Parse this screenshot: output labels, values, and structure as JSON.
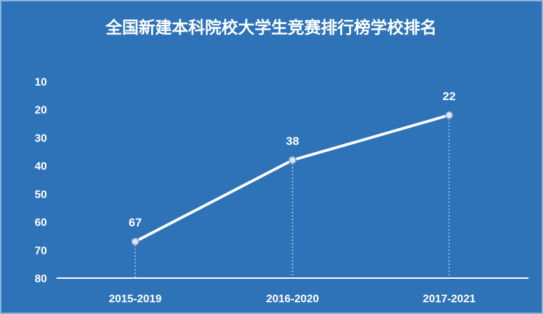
{
  "colors": {
    "background": "#2e73b8",
    "border": "#8ab4de",
    "line": "#ffffff",
    "text": "#ffffff"
  },
  "chart_data": {
    "type": "line",
    "title": "全国新建本科院校大学生竞赛排行榜学校排名",
    "xlabel": "",
    "ylabel": "",
    "categories": [
      "2015-2019",
      "2016-2020",
      "2017-2021"
    ],
    "series": [
      {
        "values": [
          67,
          38,
          22
        ]
      }
    ],
    "data_labels": [
      "67",
      "38",
      "22"
    ],
    "ylim": [
      10,
      80
    ],
    "y_reversed": true,
    "y_ticks": [
      "10",
      "20",
      "30",
      "40",
      "50",
      "60",
      "70",
      "80"
    ],
    "grid": false,
    "legend": "none"
  }
}
